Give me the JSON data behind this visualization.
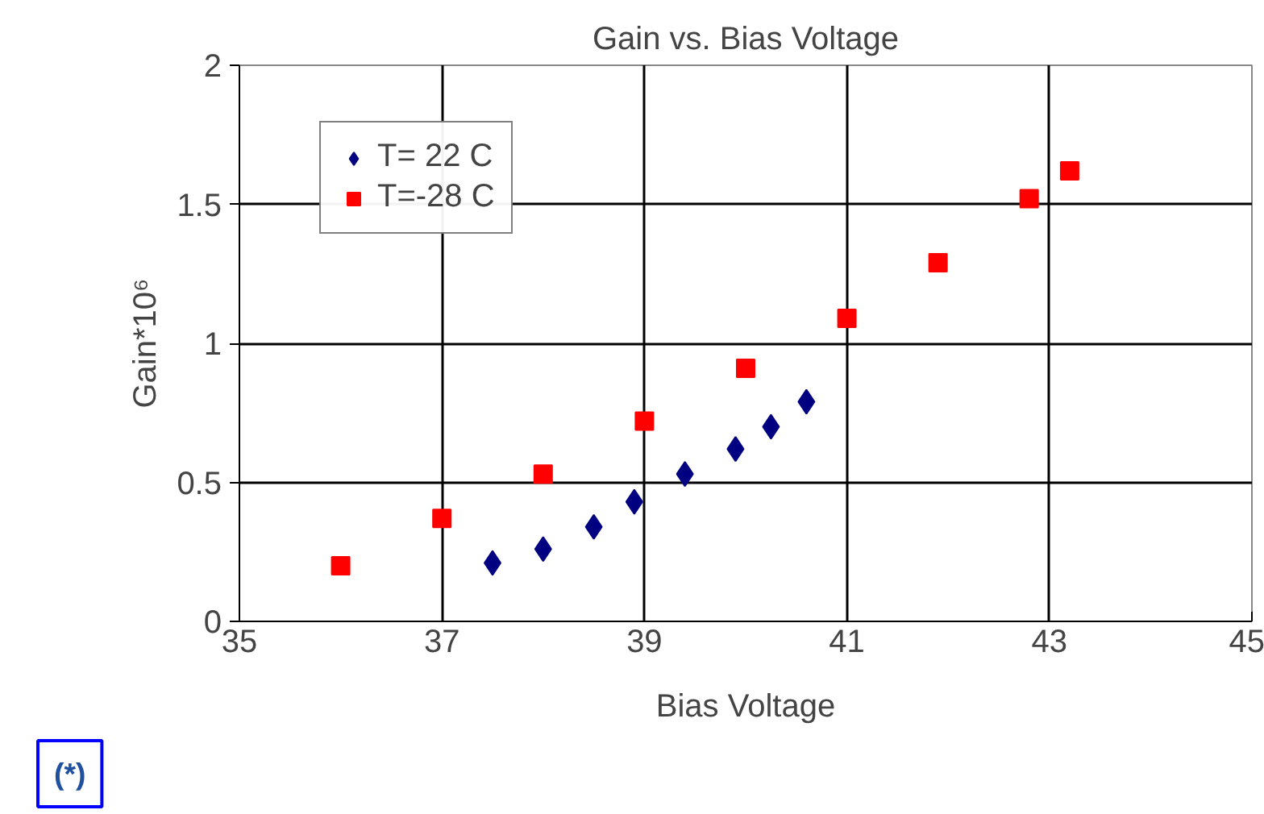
{
  "chart_data": {
    "type": "scatter",
    "title": "Gain vs. Bias Voltage",
    "xlabel": "Bias Voltage",
    "ylabel": "Gain*10⁶",
    "xlim": [
      35,
      45
    ],
    "xticks": [
      35,
      37,
      39,
      41,
      43,
      45
    ],
    "ylim": [
      0,
      2
    ],
    "yticks": [
      0,
      0.5,
      1,
      1.5,
      2
    ],
    "grid": true,
    "legend": "top left",
    "annotations": [
      "(*)"
    ],
    "series": [
      {
        "name": "T= 22 C",
        "color": "#000080",
        "marker": "diamond",
        "x": [
          37.5,
          38,
          38.5,
          38.9,
          39.4,
          39.9,
          40.25,
          40.6
        ],
        "values": [
          0.21,
          0.26,
          0.34,
          0.43,
          0.53,
          0.62,
          0.7,
          0.79
        ]
      },
      {
        "name": "T=-28 C",
        "color": "#ff0000",
        "marker": "square",
        "x": [
          36,
          37,
          38,
          39,
          40,
          41,
          41.9,
          42.8,
          43.2
        ],
        "values": [
          0.2,
          0.37,
          0.53,
          0.72,
          0.91,
          1.09,
          1.29,
          1.52,
          1.62
        ]
      }
    ]
  }
}
